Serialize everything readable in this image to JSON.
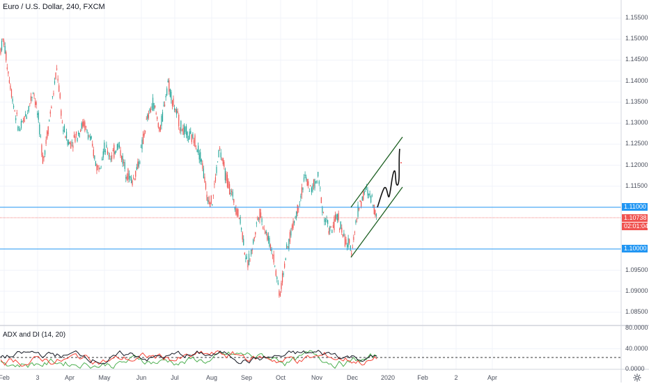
{
  "header": {
    "title": "Euro / U.S. Dollar, 240, FXCM"
  },
  "indicator": {
    "title": "ADX and DI (14, 20)",
    "axis_labels": [
      "80.0000",
      "40.0000",
      "0.0000"
    ]
  },
  "price_axis": {
    "labels": [
      "1.15500",
      "1.15000",
      "1.14500",
      "1.14000",
      "1.13500",
      "1.13000",
      "1.12500",
      "1.12000",
      "1.11500",
      "1.09500",
      "1.09000",
      "1.08500"
    ]
  },
  "tags": {
    "level_upper": "1.11000",
    "last_price": "1.10738",
    "countdown": "02:01:04",
    "level_lower": "1.10000"
  },
  "time_axis": {
    "labels": [
      "Feb",
      "3",
      "Apr",
      "May",
      "Jun",
      "Jul",
      "Aug",
      "Sep",
      "Oct",
      "Nov",
      "Dec",
      "2020",
      "Feb",
      "2",
      "Apr"
    ]
  },
  "colors": {
    "up": "#26a69a",
    "down": "#ef5350",
    "level_line": "#2196f3",
    "last_price": "#f05350",
    "channel": "#1b5e20",
    "adx": "#131722",
    "di_plus": "#4caf50",
    "di_minus": "#f44336"
  },
  "icons": {
    "settings": "gear-icon"
  }
}
